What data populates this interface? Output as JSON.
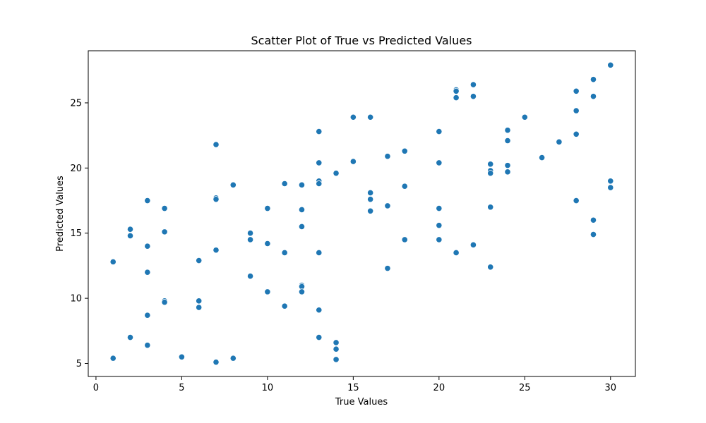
{
  "chart_data": {
    "type": "scatter",
    "title": "Scatter Plot of True vs Predicted Values",
    "xlabel": "True Values",
    "ylabel": "Predicted Values",
    "xlim": [
      -0.45,
      31.45
    ],
    "ylim": [
      4.0,
      29.0
    ],
    "xticks": [
      0,
      5,
      10,
      15,
      20,
      25,
      30
    ],
    "yticks": [
      5,
      10,
      15,
      20,
      25
    ],
    "grid": false,
    "point_color": "#1f77b4",
    "points": [
      {
        "x": 1,
        "y": 12.8
      },
      {
        "x": 1,
        "y": 5.4
      },
      {
        "x": 2,
        "y": 15.3
      },
      {
        "x": 2,
        "y": 14.8
      },
      {
        "x": 2,
        "y": 7.0
      },
      {
        "x": 3,
        "y": 17.5
      },
      {
        "x": 3,
        "y": 14.0
      },
      {
        "x": 3,
        "y": 12.0
      },
      {
        "x": 3,
        "y": 8.7
      },
      {
        "x": 3,
        "y": 6.4
      },
      {
        "x": 4,
        "y": 16.9
      },
      {
        "x": 4,
        "y": 15.1
      },
      {
        "x": 4,
        "y": 9.8
      },
      {
        "x": 4,
        "y": 9.7
      },
      {
        "x": 5,
        "y": 5.5
      },
      {
        "x": 6,
        "y": 12.9
      },
      {
        "x": 6,
        "y": 9.8
      },
      {
        "x": 6,
        "y": 9.3
      },
      {
        "x": 7,
        "y": 21.8
      },
      {
        "x": 7,
        "y": 17.7
      },
      {
        "x": 7,
        "y": 17.6
      },
      {
        "x": 7,
        "y": 13.7
      },
      {
        "x": 7,
        "y": 5.1
      },
      {
        "x": 8,
        "y": 18.7
      },
      {
        "x": 8,
        "y": 5.4
      },
      {
        "x": 9,
        "y": 15.0
      },
      {
        "x": 9,
        "y": 14.5
      },
      {
        "x": 9,
        "y": 11.7
      },
      {
        "x": 10,
        "y": 16.9
      },
      {
        "x": 10,
        "y": 14.2
      },
      {
        "x": 10,
        "y": 10.5
      },
      {
        "x": 11,
        "y": 18.8
      },
      {
        "x": 11,
        "y": 13.5
      },
      {
        "x": 11,
        "y": 9.4
      },
      {
        "x": 12,
        "y": 18.7
      },
      {
        "x": 12,
        "y": 16.8
      },
      {
        "x": 12,
        "y": 15.5
      },
      {
        "x": 12,
        "y": 11.0
      },
      {
        "x": 12,
        "y": 10.9
      },
      {
        "x": 12,
        "y": 10.5
      },
      {
        "x": 13,
        "y": 22.8
      },
      {
        "x": 13,
        "y": 20.4
      },
      {
        "x": 13,
        "y": 19.0
      },
      {
        "x": 13,
        "y": 18.8
      },
      {
        "x": 13,
        "y": 13.5
      },
      {
        "x": 13,
        "y": 9.1
      },
      {
        "x": 13,
        "y": 7.0
      },
      {
        "x": 14,
        "y": 19.6
      },
      {
        "x": 14,
        "y": 6.6
      },
      {
        "x": 14,
        "y": 6.1
      },
      {
        "x": 14,
        "y": 5.3
      },
      {
        "x": 15,
        "y": 23.9
      },
      {
        "x": 15,
        "y": 20.5
      },
      {
        "x": 16,
        "y": 23.9
      },
      {
        "x": 16,
        "y": 18.1
      },
      {
        "x": 16,
        "y": 17.6
      },
      {
        "x": 16,
        "y": 16.7
      },
      {
        "x": 17,
        "y": 20.9
      },
      {
        "x": 17,
        "y": 17.1
      },
      {
        "x": 17,
        "y": 12.3
      },
      {
        "x": 18,
        "y": 21.3
      },
      {
        "x": 18,
        "y": 18.6
      },
      {
        "x": 18,
        "y": 14.5
      },
      {
        "x": 20,
        "y": 22.8
      },
      {
        "x": 20,
        "y": 20.4
      },
      {
        "x": 20,
        "y": 16.9
      },
      {
        "x": 20,
        "y": 15.6
      },
      {
        "x": 20,
        "y": 14.5
      },
      {
        "x": 21,
        "y": 26.0
      },
      {
        "x": 21,
        "y": 25.9
      },
      {
        "x": 21,
        "y": 25.4
      },
      {
        "x": 21,
        "y": 13.5
      },
      {
        "x": 22,
        "y": 26.4
      },
      {
        "x": 22,
        "y": 25.5
      },
      {
        "x": 22,
        "y": 14.1
      },
      {
        "x": 23,
        "y": 20.3
      },
      {
        "x": 23,
        "y": 19.8
      },
      {
        "x": 23,
        "y": 19.6
      },
      {
        "x": 23,
        "y": 17.0
      },
      {
        "x": 23,
        "y": 12.4
      },
      {
        "x": 24,
        "y": 22.9
      },
      {
        "x": 24,
        "y": 22.1
      },
      {
        "x": 24,
        "y": 20.2
      },
      {
        "x": 24,
        "y": 19.7
      },
      {
        "x": 25,
        "y": 23.9
      },
      {
        "x": 26,
        "y": 20.8
      },
      {
        "x": 27,
        "y": 22.0
      },
      {
        "x": 28,
        "y": 25.9
      },
      {
        "x": 28,
        "y": 24.4
      },
      {
        "x": 28,
        "y": 22.6
      },
      {
        "x": 28,
        "y": 17.5
      },
      {
        "x": 29,
        "y": 26.8
      },
      {
        "x": 29,
        "y": 25.5
      },
      {
        "x": 29,
        "y": 16.0
      },
      {
        "x": 29,
        "y": 14.9
      },
      {
        "x": 30,
        "y": 27.9
      },
      {
        "x": 30,
        "y": 19.0
      },
      {
        "x": 30,
        "y": 18.5
      }
    ]
  }
}
